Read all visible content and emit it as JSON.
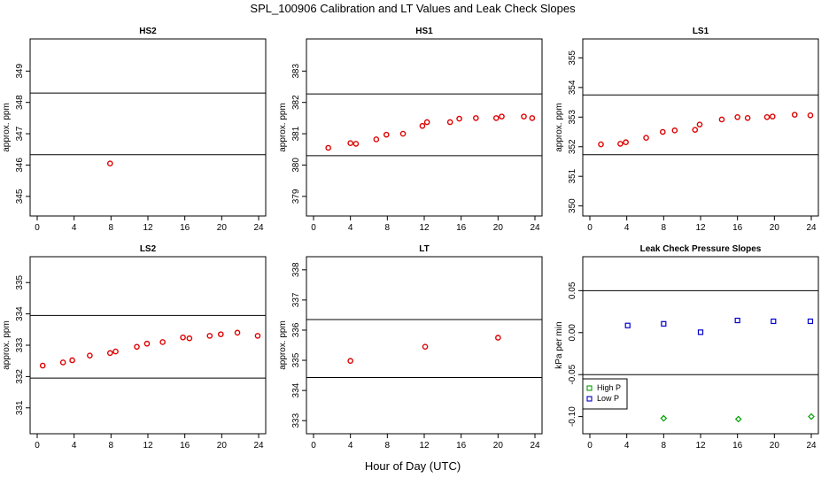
{
  "figure": {
    "title": "SPL_100906  Calibration and LT Values and Leak Check Slopes",
    "xlabel": "Hour of Day (UTC)"
  },
  "chart_data": [
    {
      "type": "scatter",
      "title": "HS2",
      "ylabel": "approx. ppm",
      "xlim": [
        0,
        24
      ],
      "ylim": [
        344.6,
        349.8
      ],
      "xticks": [
        0,
        4,
        8,
        12,
        16,
        20,
        24
      ],
      "yticks": [
        345,
        346,
        347,
        348,
        349
      ],
      "hlines": [
        346.33,
        348.3
      ],
      "series": [
        {
          "color": "#dd0000",
          "marker": "circle",
          "x": [
            7.9
          ],
          "y": [
            346.05
          ]
        }
      ]
    },
    {
      "type": "scatter",
      "title": "HS1",
      "ylabel": "approx. ppm",
      "xlim": [
        0,
        24
      ],
      "ylim": [
        378.6,
        383.8
      ],
      "xticks": [
        0,
        4,
        8,
        12,
        16,
        20,
        24
      ],
      "yticks": [
        379,
        380,
        381,
        382,
        383
      ],
      "hlines": [
        380.3,
        382.27
      ],
      "series": [
        {
          "color": "#dd0000",
          "marker": "circle",
          "x": [
            1.6,
            4.0,
            4.6,
            6.8,
            7.9,
            9.7,
            11.8,
            12.3,
            14.8,
            15.8,
            17.6,
            19.8,
            20.4,
            22.8,
            23.7
          ],
          "y": [
            380.55,
            380.7,
            380.68,
            380.82,
            380.97,
            381.0,
            381.25,
            381.37,
            381.37,
            381.48,
            381.5,
            381.5,
            381.55,
            381.55,
            381.5
          ]
        }
      ]
    },
    {
      "type": "scatter",
      "title": "LS1",
      "ylabel": "approx. ppm",
      "xlim": [
        0,
        24
      ],
      "ylim": [
        349.9,
        355.4
      ],
      "xticks": [
        0,
        4,
        8,
        12,
        16,
        20,
        24
      ],
      "yticks": [
        350,
        351,
        352,
        353,
        354,
        355
      ],
      "hlines": [
        351.73,
        353.75
      ],
      "series": [
        {
          "color": "#dd0000",
          "marker": "circle",
          "x": [
            1.2,
            3.3,
            3.9,
            6.1,
            7.9,
            9.2,
            11.4,
            11.9,
            14.3,
            16.0,
            17.1,
            19.2,
            19.8,
            22.2,
            23.9
          ],
          "y": [
            352.08,
            352.1,
            352.15,
            352.3,
            352.5,
            352.55,
            352.57,
            352.75,
            352.92,
            353.0,
            352.97,
            353.0,
            353.02,
            353.08,
            353.06
          ]
        }
      ]
    },
    {
      "type": "scatter",
      "title": "LS2",
      "ylabel": "approx. ppm",
      "xlim": [
        0,
        24
      ],
      "ylim": [
        330.4,
        335.6
      ],
      "xticks": [
        0,
        4,
        8,
        12,
        16,
        20,
        24
      ],
      "yticks": [
        331,
        332,
        333,
        334,
        335
      ],
      "hlines": [
        331.95,
        333.95
      ],
      "series": [
        {
          "color": "#dd0000",
          "marker": "circle",
          "x": [
            0.6,
            2.8,
            3.8,
            5.7,
            7.9,
            8.5,
            10.8,
            11.9,
            13.6,
            15.8,
            16.5,
            18.7,
            19.9,
            21.7,
            23.9
          ],
          "y": [
            332.35,
            332.45,
            332.52,
            332.67,
            332.75,
            332.8,
            332.95,
            333.05,
            333.1,
            333.25,
            333.22,
            333.3,
            333.35,
            333.4,
            333.3
          ]
        }
      ]
    },
    {
      "type": "scatter",
      "title": "LT",
      "ylabel": "approx. ppm",
      "xlim": [
        0,
        24
      ],
      "ylim": [
        332.8,
        338.2
      ],
      "xticks": [
        0,
        4,
        8,
        12,
        16,
        20,
        24
      ],
      "yticks": [
        333,
        334,
        335,
        336,
        337,
        338
      ],
      "hlines": [
        334.43,
        336.35
      ],
      "series": [
        {
          "color": "#dd0000",
          "marker": "circle",
          "x": [
            4.0,
            12.1,
            20.0
          ],
          "y": [
            334.98,
            335.45,
            335.75
          ]
        }
      ]
    },
    {
      "type": "scatter",
      "title": "Leak Check Pressure Slopes",
      "ylabel": "kPa per min",
      "xlim": [
        0,
        24
      ],
      "ylim": [
        -0.112,
        0.082
      ],
      "xticks": [
        0,
        4,
        8,
        12,
        16,
        20,
        24
      ],
      "yticks": [
        -0.1,
        -0.05,
        0.0,
        0.05
      ],
      "ytick_labels": [
        "-0.10",
        "-0.05",
        "0.00",
        "0.05"
      ],
      "hlines": [
        -0.05,
        0.05
      ],
      "legend": {
        "position": "bottom-left",
        "entries": [
          {
            "label": "High P",
            "color": "#00a000"
          },
          {
            "label": "Low P",
            "color": "#0000cc"
          }
        ]
      },
      "series": [
        {
          "name": "High P",
          "color": "#00a000",
          "marker": "diamond",
          "x": [
            8.0,
            16.1,
            24.0
          ],
          "y": [
            -0.102,
            -0.103,
            -0.1
          ]
        },
        {
          "name": "Low P",
          "color": "#0000cc",
          "marker": "square",
          "x": [
            4.1,
            8.0,
            12.0,
            16.0,
            19.9,
            23.9
          ],
          "y": [
            0.0085,
            0.0105,
            0.0005,
            0.0145,
            0.0135,
            0.0135
          ]
        }
      ]
    }
  ]
}
